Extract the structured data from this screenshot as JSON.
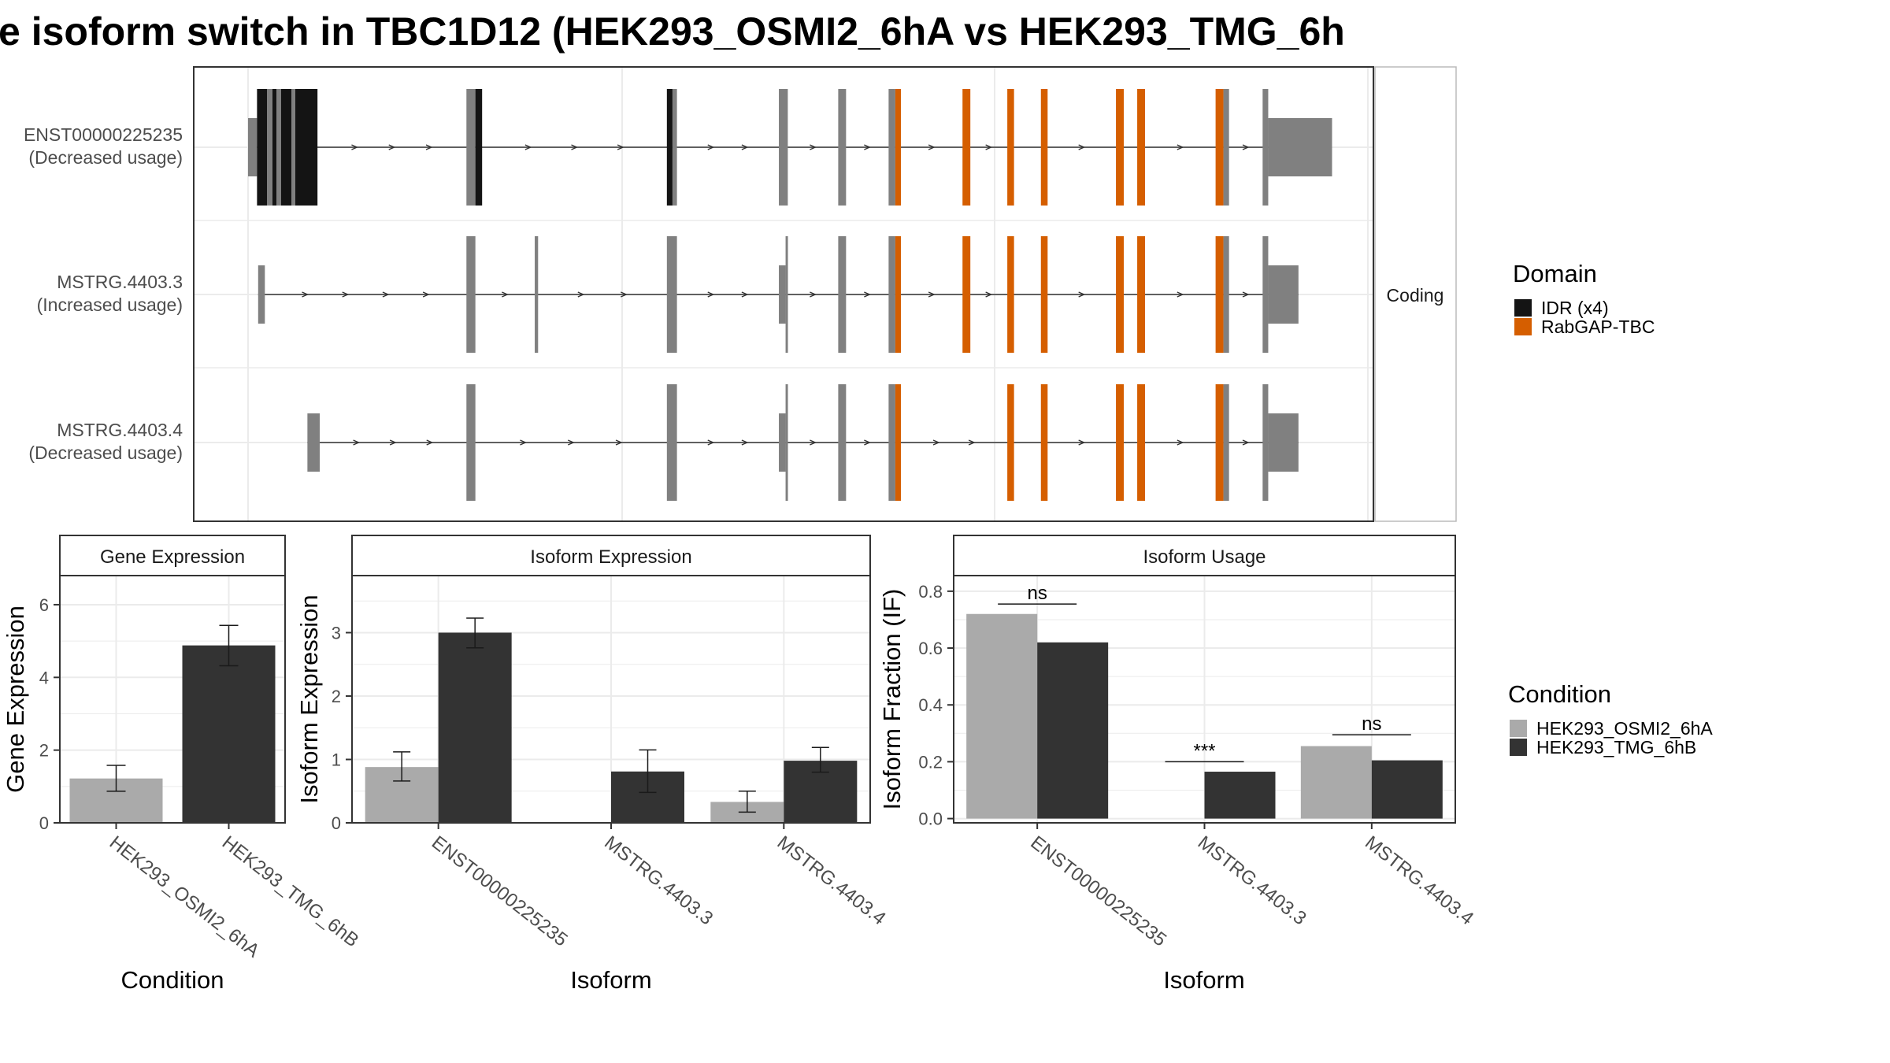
{
  "title": "e isoform switch in TBC1D12 (HEK293_OSMI2_6hA vs HEK293_TMG_6h",
  "colors": {
    "utr": "#808080",
    "idr": "#141414",
    "rabgap": "#D55E00",
    "cond_a": "#AAAAAA",
    "cond_b": "#333333",
    "grid": "#EBEBEB",
    "frame": "#333333",
    "strip_border": "#BBBBBB"
  },
  "structure": {
    "strip_label": "Coding",
    "coord_range": [
      0,
      100
    ],
    "isoforms": [
      {
        "id": "ENST00000225235",
        "usage": "(Decreased usage)",
        "exons": [
          {
            "s": 0.0,
            "e": 0.8,
            "t": "utr"
          },
          {
            "s": 0.8,
            "e": 6.2,
            "t": "idr"
          },
          {
            "s": 19.5,
            "e": 20.3,
            "t": "utr"
          },
          {
            "s": 20.3,
            "e": 20.9,
            "t": "idr"
          },
          {
            "s": 37.4,
            "e": 37.9,
            "t": "idr"
          },
          {
            "s": 37.9,
            "e": 38.3,
            "t": "utr"
          },
          {
            "s": 47.4,
            "e": 48.2,
            "t": "utr"
          },
          {
            "s": 52.7,
            "e": 53.4,
            "t": "utr"
          },
          {
            "s": 57.2,
            "e": 57.8,
            "t": "utr"
          },
          {
            "s": 57.8,
            "e": 58.3,
            "t": "rabgap"
          },
          {
            "s": 63.8,
            "e": 64.5,
            "t": "rabgap"
          },
          {
            "s": 67.8,
            "e": 68.4,
            "t": "rabgap"
          },
          {
            "s": 70.8,
            "e": 71.4,
            "t": "rabgap"
          },
          {
            "s": 77.5,
            "e": 78.2,
            "t": "rabgap"
          },
          {
            "s": 79.4,
            "e": 80.1,
            "t": "rabgap"
          },
          {
            "s": 86.4,
            "e": 87.1,
            "t": "rabgap"
          },
          {
            "s": 87.1,
            "e": 87.6,
            "t": "utr"
          },
          {
            "s": 90.6,
            "e": 91.1,
            "t": "utr"
          },
          {
            "s": 91.1,
            "e": 96.8,
            "t": "utr"
          }
        ]
      },
      {
        "id": "MSTRG.4403.3",
        "usage": "(Increased usage)",
        "exons": [
          {
            "s": 0.9,
            "e": 1.5,
            "t": "utr"
          },
          {
            "s": 19.5,
            "e": 20.3,
            "t": "utr"
          },
          {
            "s": 25.6,
            "e": 25.9,
            "t": "utr"
          },
          {
            "s": 37.4,
            "e": 38.3,
            "t": "utr"
          },
          {
            "s": 47.4,
            "e": 48.0,
            "t": "utr"
          },
          {
            "s": 48.0,
            "e": 48.2,
            "t": "utr"
          },
          {
            "s": 52.7,
            "e": 53.4,
            "t": "utr"
          },
          {
            "s": 57.2,
            "e": 57.8,
            "t": "utr"
          },
          {
            "s": 57.8,
            "e": 58.3,
            "t": "rabgap"
          },
          {
            "s": 63.8,
            "e": 64.5,
            "t": "rabgap"
          },
          {
            "s": 67.8,
            "e": 68.4,
            "t": "rabgap"
          },
          {
            "s": 70.8,
            "e": 71.4,
            "t": "rabgap"
          },
          {
            "s": 77.5,
            "e": 78.2,
            "t": "rabgap"
          },
          {
            "s": 79.4,
            "e": 80.1,
            "t": "rabgap"
          },
          {
            "s": 86.4,
            "e": 87.1,
            "t": "rabgap"
          },
          {
            "s": 87.1,
            "e": 87.6,
            "t": "utr"
          },
          {
            "s": 90.6,
            "e": 91.1,
            "t": "utr"
          },
          {
            "s": 91.1,
            "e": 93.8,
            "t": "utr"
          }
        ]
      },
      {
        "id": "MSTRG.4403.4",
        "usage": "(Decreased usage)",
        "exons": [
          {
            "s": 5.3,
            "e": 6.4,
            "t": "utr"
          },
          {
            "s": 19.5,
            "e": 20.3,
            "t": "utr"
          },
          {
            "s": 37.4,
            "e": 38.3,
            "t": "utr"
          },
          {
            "s": 47.4,
            "e": 48.0,
            "t": "utr"
          },
          {
            "s": 48.0,
            "e": 48.2,
            "t": "utr"
          },
          {
            "s": 52.7,
            "e": 53.4,
            "t": "utr"
          },
          {
            "s": 57.2,
            "e": 57.8,
            "t": "utr"
          },
          {
            "s": 57.8,
            "e": 58.3,
            "t": "rabgap"
          },
          {
            "s": 67.8,
            "e": 68.4,
            "t": "rabgap"
          },
          {
            "s": 70.8,
            "e": 71.4,
            "t": "rabgap"
          },
          {
            "s": 77.5,
            "e": 78.2,
            "t": "rabgap"
          },
          {
            "s": 79.4,
            "e": 80.1,
            "t": "rabgap"
          },
          {
            "s": 86.4,
            "e": 87.1,
            "t": "rabgap"
          },
          {
            "s": 87.1,
            "e": 87.6,
            "t": "utr"
          },
          {
            "s": 90.6,
            "e": 91.1,
            "t": "utr"
          },
          {
            "s": 91.1,
            "e": 93.8,
            "t": "utr"
          }
        ]
      }
    ]
  },
  "legend_domain": {
    "title": "Domain",
    "items": [
      {
        "label": "IDR (x4)",
        "color": "#141414"
      },
      {
        "label": "RabGAP-TBC",
        "color": "#D55E00"
      }
    ]
  },
  "legend_condition": {
    "title": "Condition",
    "items": [
      {
        "label": "HEK293_OSMI2_6hA",
        "color": "#AAAAAA"
      },
      {
        "label": "HEK293_TMG_6hB",
        "color": "#333333"
      }
    ]
  },
  "chart_data": [
    {
      "type": "bar",
      "title": "Gene Expression",
      "xlabel": "Condition",
      "ylabel": "Gene Expression",
      "categories": [
        "HEK293_OSMI2_6hA",
        "HEK293_TMG_6hB"
      ],
      "values": [
        1.22,
        4.88
      ],
      "err_low": [
        0.87,
        4.32
      ],
      "err_high": [
        1.58,
        5.43
      ],
      "ylim": [
        0,
        6.8
      ],
      "yticks": [
        0,
        2,
        4,
        6
      ]
    },
    {
      "type": "bar",
      "title": "Isoform Expression",
      "xlabel": "Isoform",
      "ylabel": "Isoform Expression",
      "categories": [
        "ENST00000225235",
        "MSTRG.4403.3",
        "MSTRG.4403.4"
      ],
      "series": [
        {
          "name": "HEK293_OSMI2_6hA",
          "values": [
            0.88,
            0.0,
            0.33
          ],
          "err_low": [
            0.66,
            null,
            0.17
          ],
          "err_high": [
            1.12,
            null,
            0.5
          ]
        },
        {
          "name": "HEK293_TMG_6hB",
          "values": [
            3.0,
            0.81,
            0.98
          ],
          "err_low": [
            2.76,
            0.48,
            0.8
          ],
          "err_high": [
            3.23,
            1.15,
            1.19
          ]
        }
      ],
      "ylim": [
        0,
        3.9
      ],
      "yticks": [
        0,
        1,
        2,
        3
      ]
    },
    {
      "type": "bar",
      "title": "Isoform Usage",
      "xlabel": "Isoform",
      "ylabel": "Isoform Fraction (IF)",
      "categories": [
        "ENST00000225235",
        "MSTRG.4403.3",
        "MSTRG.4403.4"
      ],
      "series": [
        {
          "name": "HEK293_OSMI2_6hA",
          "values": [
            0.72,
            0.0,
            0.255
          ]
        },
        {
          "name": "HEK293_TMG_6hB",
          "values": [
            0.62,
            0.165,
            0.205
          ]
        }
      ],
      "significance": [
        "ns",
        "***",
        "ns"
      ],
      "sig_y": [
        0.755,
        0.2,
        0.295
      ],
      "ylim": [
        -0.015,
        0.855
      ],
      "yticks": [
        0.0,
        0.2,
        0.4,
        0.6,
        0.8
      ],
      "ytick_labels": [
        "0.0",
        "0.2",
        "0.4",
        "0.6",
        "0.8"
      ]
    }
  ]
}
